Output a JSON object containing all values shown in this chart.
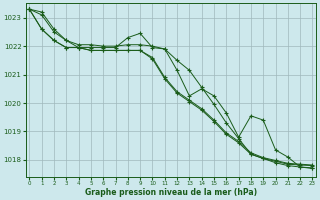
{
  "bg_color": "#cde8ec",
  "grid_color": "#a0b8bc",
  "line_color": "#1a5c1a",
  "xlabel": "Graphe pression niveau de la mer (hPa)",
  "xlabel_color": "#1a5c1a",
  "tick_color": "#1a5c1a",
  "ylim": [
    1017.4,
    1023.5
  ],
  "xlim": [
    -0.3,
    23.3
  ],
  "yticks": [
    1018,
    1019,
    1020,
    1021,
    1022,
    1023
  ],
  "xticks": [
    0,
    1,
    2,
    3,
    4,
    5,
    6,
    7,
    8,
    9,
    10,
    11,
    12,
    13,
    14,
    15,
    16,
    17,
    18,
    19,
    20,
    21,
    22,
    23
  ],
  "series": [
    [
      1023.3,
      1023.2,
      1022.6,
      1022.2,
      1021.95,
      1021.95,
      1021.95,
      1021.95,
      1022.3,
      1022.45,
      1021.95,
      1021.9,
      1021.15,
      1020.25,
      1020.5,
      1020.25,
      1019.65,
      1018.8,
      1019.55,
      1019.4,
      1018.35,
      1018.1,
      1017.75,
      1017.7
    ],
    [
      1023.3,
      1022.6,
      1022.2,
      1021.95,
      1021.95,
      1021.85,
      1021.85,
      1021.85,
      1021.85,
      1021.85,
      1021.55,
      1020.85,
      1020.35,
      1020.05,
      1019.75,
      1019.35,
      1018.9,
      1018.6,
      1018.2,
      1018.05,
      1017.95,
      1017.85,
      1017.82,
      1017.8
    ],
    [
      1023.3,
      1022.6,
      1022.2,
      1021.95,
      1021.95,
      1021.85,
      1021.85,
      1021.85,
      1021.85,
      1021.85,
      1021.6,
      1020.9,
      1020.4,
      1020.1,
      1019.8,
      1019.4,
      1018.95,
      1018.65,
      1018.25,
      1018.08,
      1017.98,
      1017.88,
      1017.85,
      1017.82
    ],
    [
      1023.3,
      1023.1,
      1022.5,
      1022.2,
      1022.05,
      1022.05,
      1022.0,
      1022.0,
      1022.05,
      1022.05,
      1022.0,
      1021.9,
      1021.5,
      1021.15,
      1020.55,
      1019.95,
      1019.3,
      1018.75,
      1018.2,
      1018.05,
      1017.9,
      1017.8,
      1017.75,
      1017.72
    ]
  ]
}
